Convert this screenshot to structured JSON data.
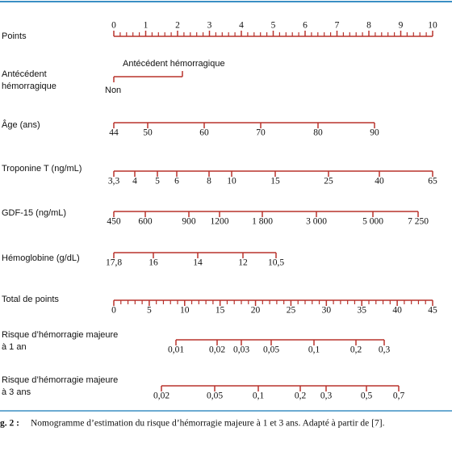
{
  "scales": [
    {
      "label": [
        "Points"
      ],
      "ticks": [
        "0",
        "1",
        "2",
        "3",
        "4",
        "5",
        "6",
        "7",
        "8",
        "9",
        "10"
      ]
    },
    {
      "label": [
        "Antécédent",
        "hémorragique"
      ],
      "ticks": [
        "Non",
        "Antécédent hémorragique"
      ]
    },
    {
      "label": [
        "Âge (ans)"
      ],
      "ticks": [
        "44",
        "50",
        "60",
        "70",
        "80",
        "90"
      ]
    },
    {
      "label": [
        "Troponine T (ng/mL)"
      ],
      "ticks": [
        "3,3",
        "4",
        "5",
        "6",
        "8",
        "10",
        "15",
        "25",
        "40",
        "65"
      ]
    },
    {
      "label": [
        "GDF-15 (ng/mL)"
      ],
      "ticks": [
        "450",
        "600",
        "900",
        "1200",
        "1 800",
        "3 000",
        "5 000",
        "7 250"
      ]
    },
    {
      "label": [
        "Hémoglobine (g/dL)"
      ],
      "ticks": [
        "17,8",
        "16",
        "14",
        "12",
        "10,5"
      ]
    },
    {
      "label": [
        "Total de points"
      ],
      "ticks": [
        "0",
        "5",
        "10",
        "15",
        "20",
        "25",
        "30",
        "35",
        "40",
        "45"
      ]
    },
    {
      "label": [
        "Risque d’hémorragie majeure",
        "à 1 an"
      ],
      "ticks": [
        "0,01",
        "0,02",
        "0,03",
        "0,05",
        "0,1",
        "0,2",
        "0,3"
      ]
    },
    {
      "label": [
        "Risque d’hémorragie majeure",
        "à 3 ans"
      ],
      "ticks": [
        "0,02",
        "0,05",
        "0,1",
        "0,2",
        "0,3",
        "0,5",
        "0,7"
      ]
    }
  ],
  "caption": {
    "label": "g. 2 :",
    "text": "Nomogramme d’estimation du risque d’hémorragie majeure à 1 et 3 ans. Adapté à partir de [7]."
  }
}
